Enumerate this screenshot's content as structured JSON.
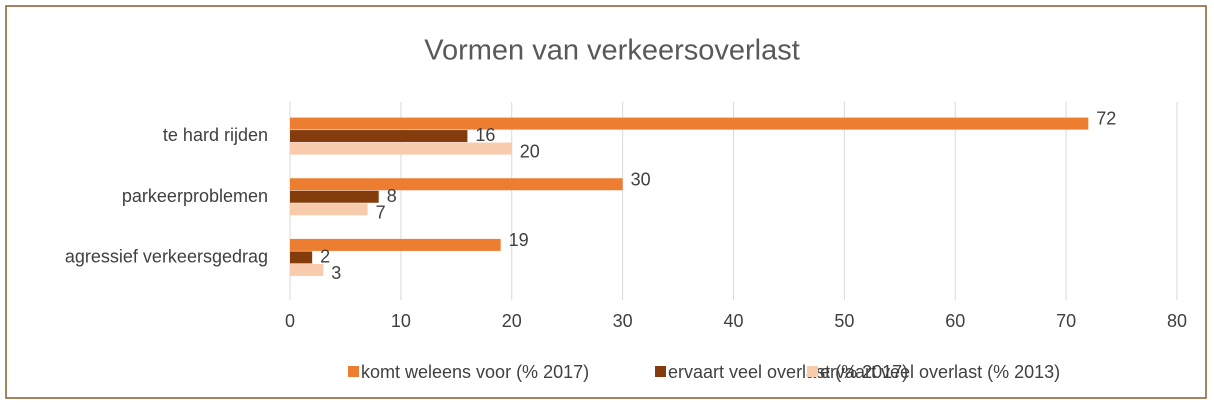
{
  "chart_data": {
    "type": "bar",
    "orientation": "horizontal",
    "title": "Vormen van verkeersoverlast",
    "categories": [
      "te hard rijden",
      "parkeerproblemen",
      "agressief verkeersgedrag"
    ],
    "series": [
      {
        "name": "komt weleens voor (% 2017)",
        "color": "#ed7d31",
        "values": [
          72,
          30,
          19
        ]
      },
      {
        "name": "ervaart veel overlast (% 2017)",
        "color": "#843c0c",
        "values": [
          16,
          8,
          2
        ]
      },
      {
        "name": "ervaart veel overlast (% 2013)",
        "color": "#f8cbad",
        "values": [
          20,
          7,
          3
        ]
      }
    ],
    "xlim": [
      0,
      80
    ],
    "xticks": [
      0,
      10,
      20,
      30,
      40,
      50,
      60,
      70,
      80
    ],
    "grid": true,
    "legend": "bottom"
  }
}
